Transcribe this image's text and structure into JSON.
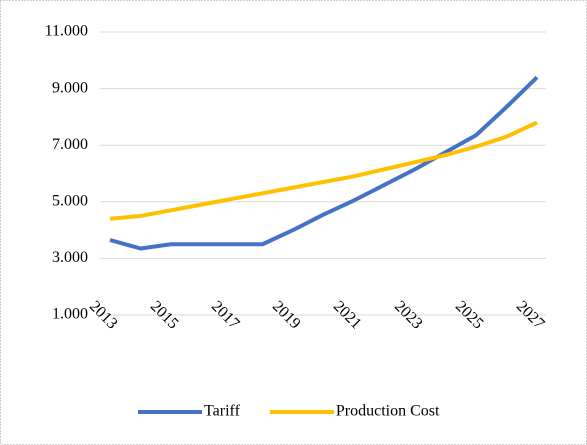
{
  "chart_data": {
    "type": "line",
    "x": [
      2013,
      2014,
      2015,
      2016,
      2017,
      2018,
      2019,
      2020,
      2021,
      2022,
      2023,
      2024,
      2025,
      2026,
      2027
    ],
    "xlim": [
      2013,
      2027
    ],
    "xticks": [
      2013,
      2015,
      2017,
      2019,
      2021,
      2023,
      2025,
      2027
    ],
    "series": [
      {
        "name": "Tariff",
        "color": "#4472c4",
        "values": [
          3650,
          3350,
          3500,
          3500,
          3500,
          3500,
          4000,
          4550,
          5050,
          5600,
          6150,
          6750,
          7350,
          8350,
          9400
        ]
      },
      {
        "name": "Production Cost",
        "color": "#ffc000",
        "values": [
          4400,
          4500,
          4700,
          4900,
          5100,
          5300,
          5500,
          5700,
          5900,
          6150,
          6400,
          6650,
          6950,
          7300,
          7800
        ]
      }
    ],
    "ylim": [
      1000,
      11000
    ],
    "yticks": [
      {
        "value": 1000,
        "label": "1.000"
      },
      {
        "value": 3000,
        "label": "3.000"
      },
      {
        "value": 5000,
        "label": "5.000"
      },
      {
        "value": 7000,
        "label": "7.000"
      },
      {
        "value": 9000,
        "label": "9.000"
      },
      {
        "value": 11000,
        "label": "11.000"
      }
    ],
    "grid": true,
    "legend": "bottom"
  }
}
